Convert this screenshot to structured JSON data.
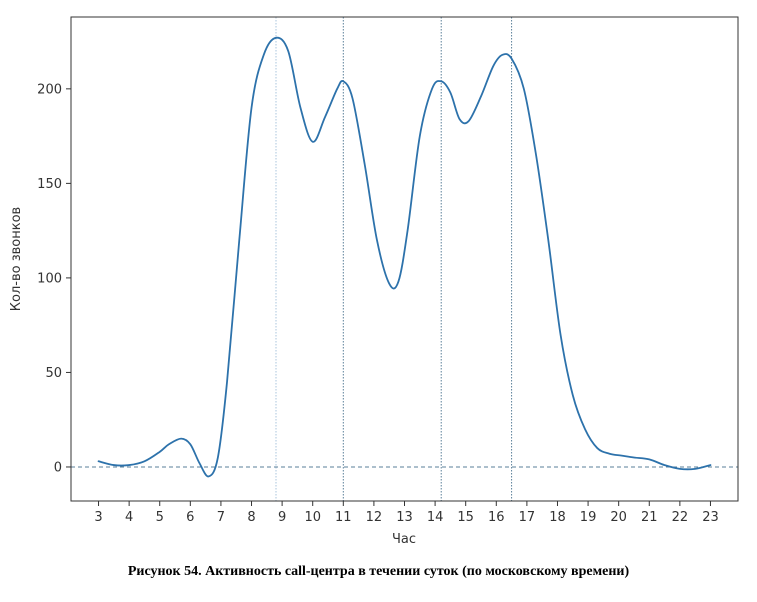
{
  "caption": "Рисунок 54. Активность call-центра в течении суток (по московскому времени)",
  "chart_data": {
    "type": "line",
    "xlabel": "Час",
    "ylabel": "Кол-во звонков",
    "xlim": [
      2.1,
      23.9
    ],
    "ylim": [
      -18,
      238
    ],
    "xticks": [
      3,
      4,
      5,
      6,
      7,
      8,
      9,
      10,
      11,
      12,
      13,
      14,
      15,
      16,
      17,
      18,
      19,
      20,
      21,
      22,
      23
    ],
    "yticks": [
      0,
      50,
      100,
      150,
      200
    ],
    "grid": false,
    "line_color": "#2d72ab",
    "series": [
      {
        "x": [
          3.0,
          3.5,
          4.0,
          4.5,
          5.0,
          5.3,
          5.7,
          6.0,
          6.3,
          6.6,
          6.9,
          7.2,
          7.6,
          8.0,
          8.4,
          8.8,
          9.2,
          9.6,
          10.0,
          10.4,
          10.8,
          11.0,
          11.3,
          11.7,
          12.1,
          12.5,
          12.8,
          13.1,
          13.5,
          13.9,
          14.2,
          14.5,
          14.8,
          15.1,
          15.5,
          15.9,
          16.2,
          16.5,
          16.9,
          17.3,
          17.7,
          18.1,
          18.5,
          18.9,
          19.3,
          19.7,
          20.1,
          20.5,
          21.0,
          21.5,
          22.0,
          22.5,
          23.0
        ],
        "y": [
          3,
          1,
          1,
          3,
          8,
          12,
          15,
          12,
          2,
          -5,
          5,
          45,
          120,
          190,
          218,
          227,
          220,
          190,
          172,
          185,
          200,
          204,
          195,
          160,
          120,
          97,
          98,
          125,
          175,
          200,
          204,
          198,
          184,
          183,
          196,
          212,
          218,
          216,
          200,
          165,
          120,
          70,
          38,
          20,
          10,
          7,
          6,
          5,
          4,
          1,
          -1,
          -1,
          1
        ]
      }
    ],
    "vlines": [
      {
        "x": 8.8,
        "color": "#a9c4dd"
      },
      {
        "x": 11.0,
        "color": "#5a7f99"
      },
      {
        "x": 14.2,
        "color": "#5a7f99"
      },
      {
        "x": 16.5,
        "color": "#5a7f99"
      }
    ],
    "hlines": [
      {
        "y": 0,
        "color": "#5a7f99"
      }
    ]
  }
}
